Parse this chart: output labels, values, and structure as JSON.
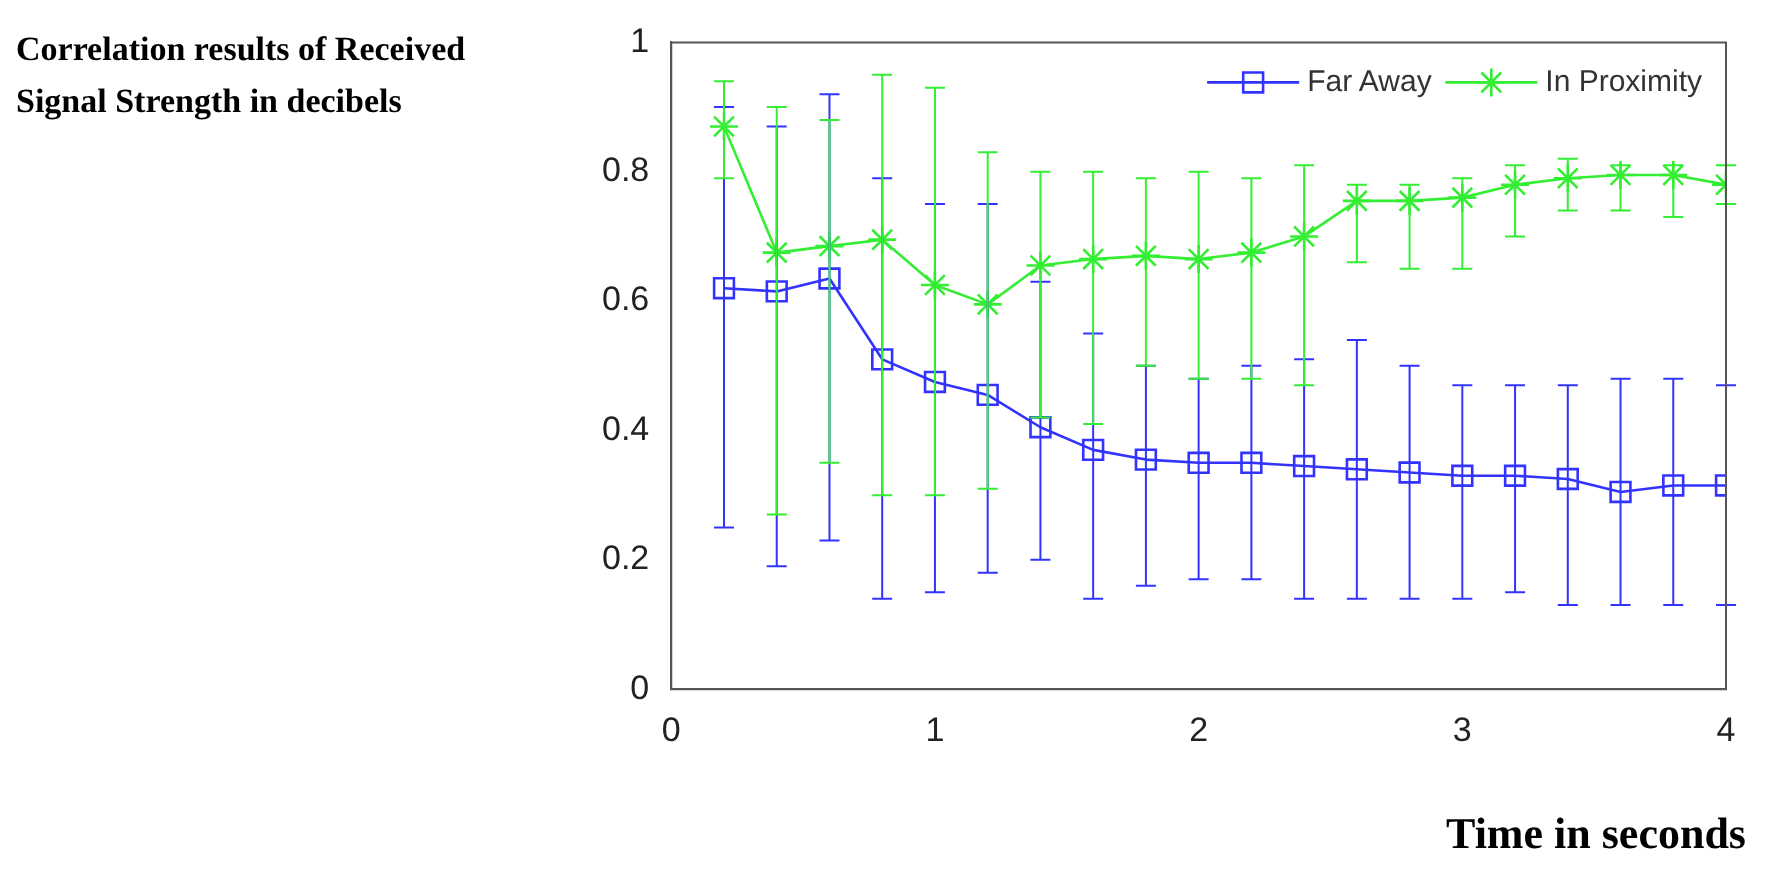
{
  "chart_data": {
    "type": "line",
    "title": "Correlation results of Received Signal Strength in decibels",
    "xlabel": "Time in seconds",
    "x": [
      0.2,
      0.4,
      0.6,
      0.8,
      1.0,
      1.2,
      1.4,
      1.6,
      1.8,
      2.0,
      2.2,
      2.4,
      2.6,
      2.8,
      3.0,
      3.2,
      3.4,
      3.6,
      3.8,
      4.0
    ],
    "series": [
      {
        "name": "Far Away",
        "color": "#3333ff",
        "marker": "square",
        "values": [
          0.62,
          0.615,
          0.635,
          0.51,
          0.475,
          0.455,
          0.405,
          0.37,
          0.355,
          0.35,
          0.35,
          0.345,
          0.34,
          0.335,
          0.33,
          0.33,
          0.325,
          0.305,
          0.315,
          0.315
        ],
        "errors": [
          [
            0.25,
            0.9
          ],
          [
            0.19,
            0.87
          ],
          [
            0.23,
            0.92
          ],
          [
            0.14,
            0.79
          ],
          [
            0.15,
            0.75
          ],
          [
            0.18,
            0.75
          ],
          [
            0.2,
            0.63
          ],
          [
            0.14,
            0.55
          ],
          [
            0.16,
            0.5
          ],
          [
            0.17,
            0.48
          ],
          [
            0.17,
            0.5
          ],
          [
            0.14,
            0.51
          ],
          [
            0.14,
            0.54
          ],
          [
            0.14,
            0.5
          ],
          [
            0.14,
            0.47
          ],
          [
            0.15,
            0.47
          ],
          [
            0.13,
            0.47
          ],
          [
            0.13,
            0.48
          ],
          [
            0.13,
            0.48
          ],
          [
            0.13,
            0.47
          ]
        ]
      },
      {
        "name": "In Proximity",
        "color": "#33ee33",
        "marker": "cross",
        "values": [
          0.87,
          0.675,
          0.685,
          0.695,
          0.625,
          0.595,
          0.655,
          0.665,
          0.67,
          0.665,
          0.675,
          0.7,
          0.755,
          0.755,
          0.76,
          0.78,
          0.79,
          0.795,
          0.795,
          0.78
        ],
        "errors": [
          [
            0.79,
            0.94
          ],
          [
            0.27,
            0.9
          ],
          [
            0.35,
            0.88
          ],
          [
            0.3,
            0.95
          ],
          [
            0.3,
            0.93
          ],
          [
            0.31,
            0.83
          ],
          [
            0.42,
            0.8
          ],
          [
            0.41,
            0.8
          ],
          [
            0.5,
            0.79
          ],
          [
            0.48,
            0.8
          ],
          [
            0.48,
            0.79
          ],
          [
            0.47,
            0.81
          ],
          [
            0.66,
            0.78
          ],
          [
            0.65,
            0.78
          ],
          [
            0.65,
            0.79
          ],
          [
            0.7,
            0.81
          ],
          [
            0.74,
            0.82
          ],
          [
            0.74,
            0.81
          ],
          [
            0.73,
            0.81
          ],
          [
            0.75,
            0.81
          ]
        ]
      }
    ],
    "xlim": [
      0,
      4
    ],
    "xticks": [
      0,
      1,
      2,
      3,
      4
    ],
    "ylim": [
      0,
      1
    ],
    "yticks": [
      0,
      0.2,
      0.4,
      0.6,
      0.8,
      1
    ],
    "grid": false,
    "legend": "top right",
    "line_style": "solid"
  }
}
